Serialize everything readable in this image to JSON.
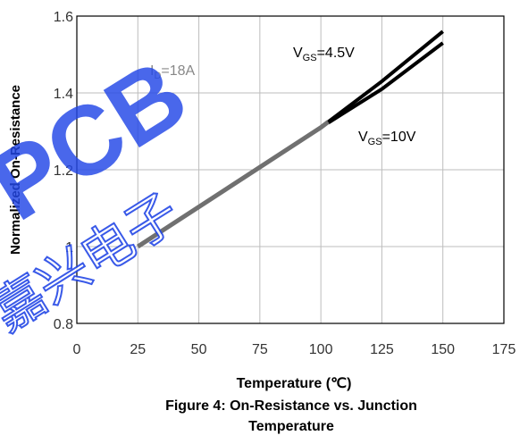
{
  "chart_data": {
    "type": "line",
    "xlabel": "Temperature (℃)",
    "ylabel": "Normalized On-Resistance",
    "caption_line1": "Figure 4: On-Resistance vs. Junction",
    "caption_line2": "Temperature",
    "xlim": [
      0,
      175
    ],
    "ylim": [
      0.8,
      1.6
    ],
    "x_ticks": [
      0,
      25,
      50,
      75,
      100,
      125,
      150,
      175
    ],
    "y_ticks": [
      0.8,
      1,
      1.2,
      1.4,
      1.6
    ],
    "x_tick_labels": [
      "0",
      "25",
      "50",
      "75",
      "100",
      "125",
      "150",
      "175"
    ],
    "y_tick_labels": [
      "0.8",
      "1",
      "1.2",
      "1.4",
      "1.6"
    ],
    "grid": true,
    "annotation_id": {
      "main": "I",
      "sub": "D",
      "rest": "=18A"
    },
    "series": [
      {
        "label": {
          "main": "V",
          "sub": "GS",
          "rest": "=4.5V"
        },
        "color": "#000000",
        "x": [
          25,
          100,
          125,
          150
        ],
        "y": [
          1.0,
          1.31,
          1.43,
          1.56
        ]
      },
      {
        "label": {
          "main": "V",
          "sub": "GS",
          "rest": "=10V"
        },
        "color": "#000000",
        "x": [
          25,
          100,
          125,
          150
        ],
        "y": [
          1.0,
          1.31,
          1.41,
          1.53
        ]
      }
    ],
    "overlap_color": "#707070",
    "overlap_until_x": 103
  },
  "watermark": {
    "text": "PCB",
    "sub_text": "嘉兴电子",
    "color": "#1a3fe0"
  }
}
